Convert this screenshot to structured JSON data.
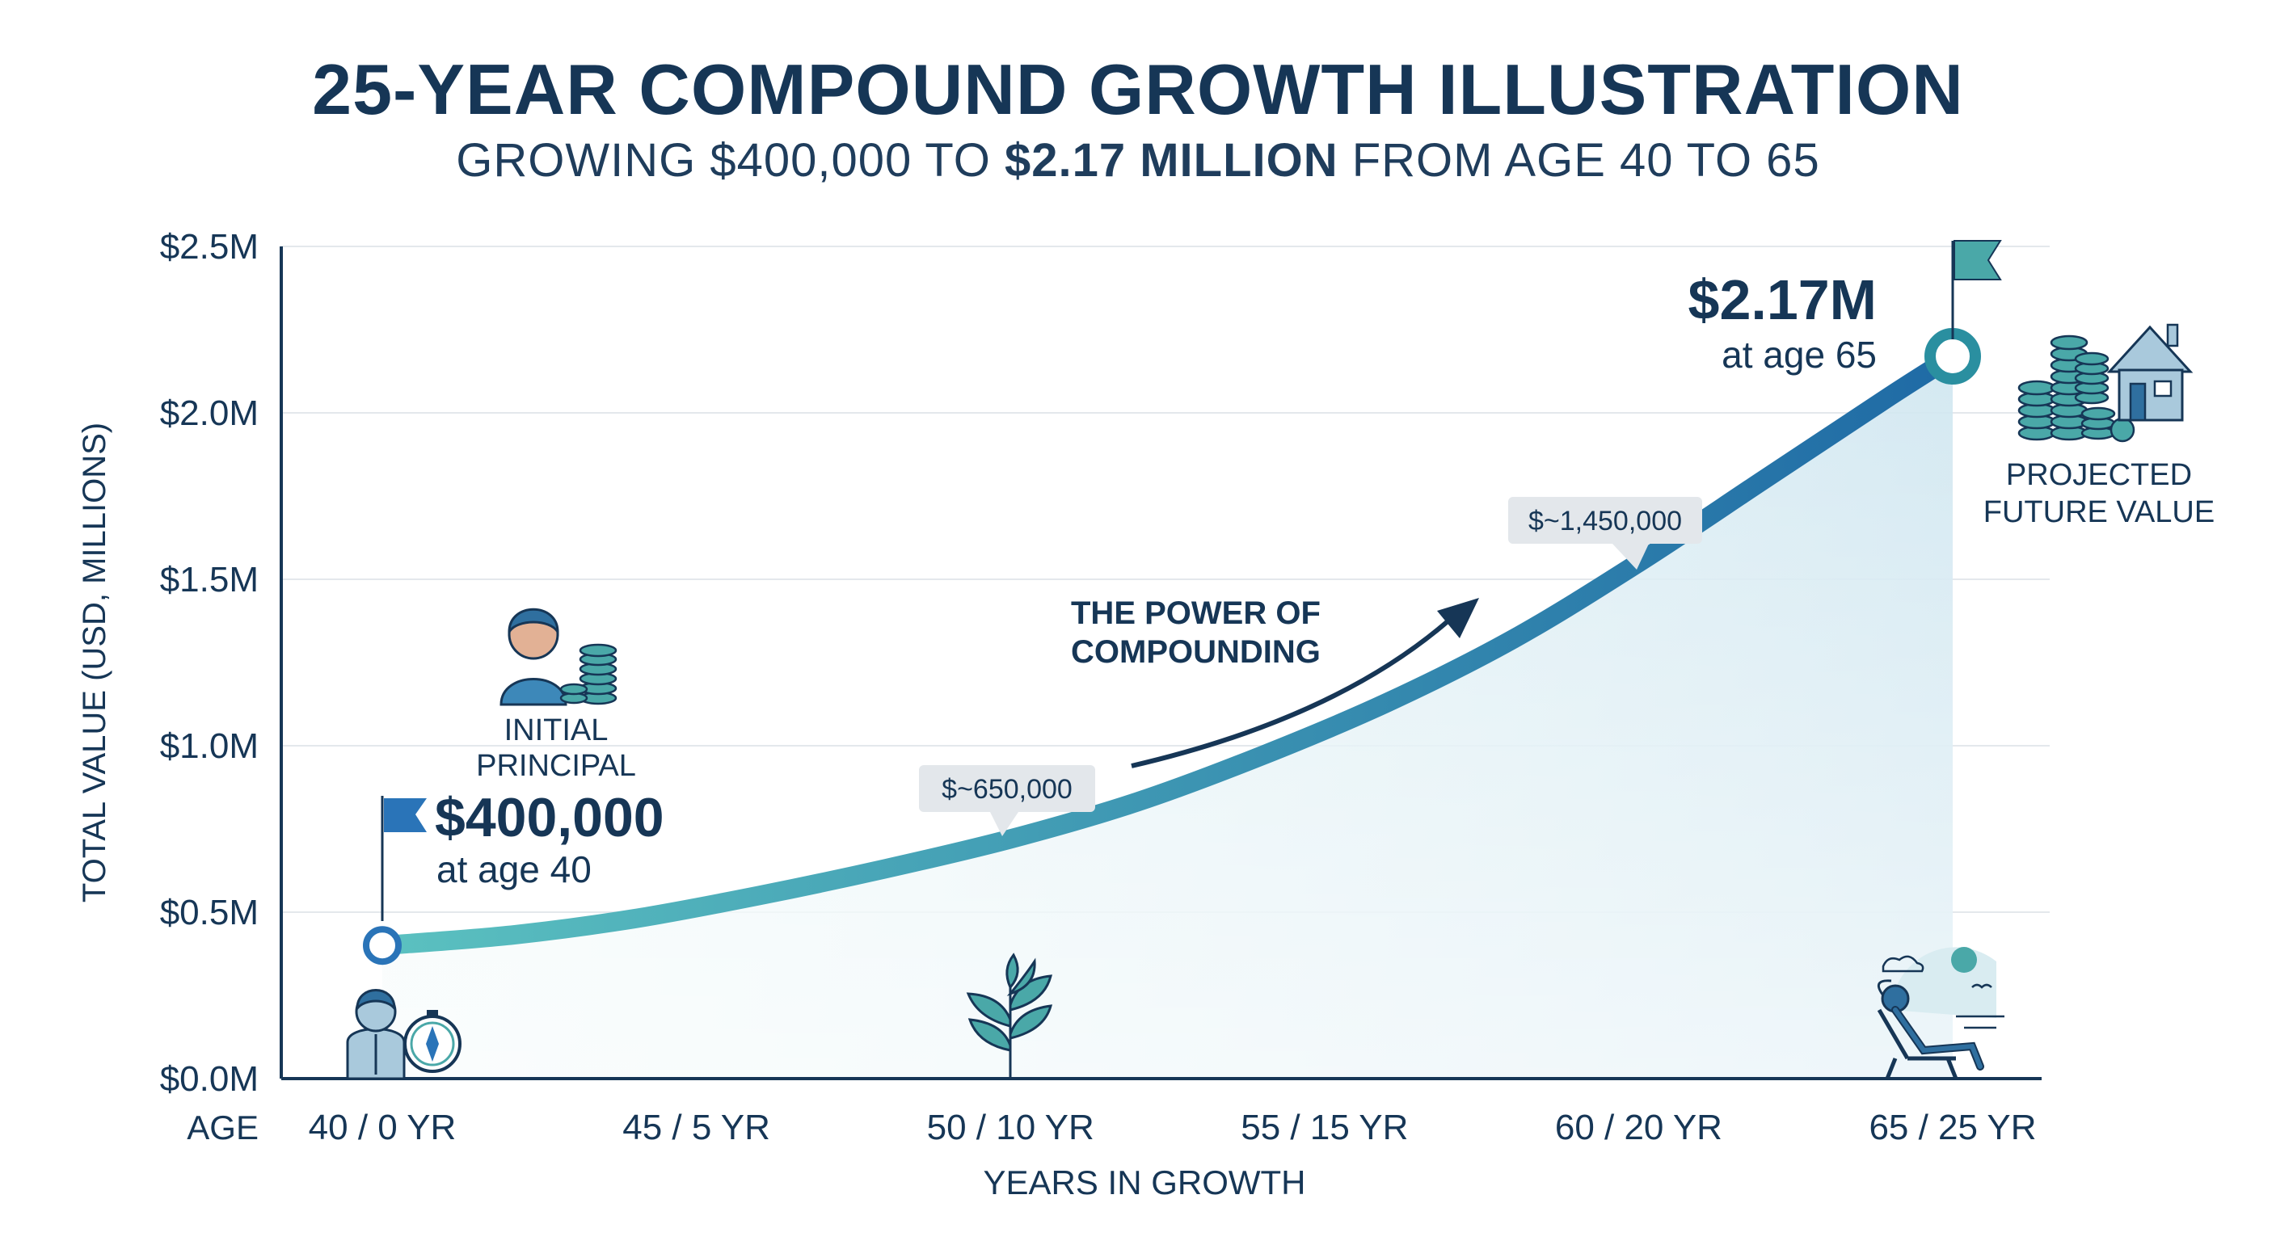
{
  "header": {
    "title": "25-YEAR COMPOUND GROWTH ILLUSTRATION",
    "subtitle_prefix": "GROWING $400,000 TO ",
    "subtitle_bold": "$2.17 MILLION",
    "subtitle_suffix": " FROM AGE 40 TO 65"
  },
  "chart_data": {
    "type": "area",
    "title": "25-YEAR COMPOUND GROWTH ILLUSTRATION",
    "subtitle": "GROWING $400,000 TO $2.17 MILLION FROM AGE 40 TO 65",
    "ylabel": "TOTAL VALUE (USD, MILLIONS)",
    "xlabel": "YEARS IN GROWTH",
    "x_prefix_label": "AGE",
    "ylim": [
      0,
      2.5
    ],
    "y_ticks": [
      0,
      0.5,
      1.0,
      1.5,
      2.0,
      2.5
    ],
    "y_tick_labels": [
      "$0.0M",
      "$0.5M",
      "$1.0M",
      "$1.5M",
      "$2.0M",
      "$2.5M"
    ],
    "xlim": [
      0,
      25
    ],
    "x_ticks": [
      0,
      5,
      10,
      15,
      20,
      25
    ],
    "x_tick_labels": [
      "40 / 0 YR",
      "45 / 5 YR",
      "50 / 10 YR",
      "55 / 15 YR",
      "60 / 20 YR",
      "65 / 25 YR"
    ],
    "grid": true,
    "series": [
      {
        "x": [
          0,
          2,
          4,
          6,
          8,
          10,
          12,
          14,
          16,
          18,
          20,
          22,
          24,
          25
        ],
        "values": [
          0.4,
          0.43,
          0.48,
          0.55,
          0.63,
          0.72,
          0.83,
          0.97,
          1.13,
          1.32,
          1.55,
          1.8,
          2.05,
          2.17
        ]
      }
    ],
    "annotations": {
      "start": {
        "x": 0,
        "y": 0.4,
        "value": "$400,000",
        "sub": "at age 40",
        "caption": "INITIAL PRINCIPAL"
      },
      "end": {
        "x": 25,
        "y": 2.17,
        "value": "$2.17M",
        "sub": "at age 65",
        "caption_line1": "PROJECTED",
        "caption_line2": "FUTURE VALUE"
      },
      "mid1": {
        "x": 10,
        "y": 0.65,
        "label": "$~650,000"
      },
      "mid2": {
        "x": 19.5,
        "y": 1.45,
        "label": "$~1,450,000"
      },
      "power_line1": "THE POWER OF",
      "power_line2": "COMPOUNDING"
    },
    "colors": {
      "line_start": "#5bc1c0",
      "line_end": "#1f6aa5",
      "fill": "#d9eef4",
      "text": "#163656",
      "grid": "#e4e8ec",
      "axis": "#163656",
      "flag_start": "#2a74b8",
      "flag_end": "#4aa8a8",
      "bubble": "#e3e7eb"
    },
    "icons": [
      "person-coins-icon",
      "person-compass-icon",
      "sapling-icon",
      "relaxing-chair-icon",
      "coins-house-icon",
      "flag-icon"
    ]
  }
}
